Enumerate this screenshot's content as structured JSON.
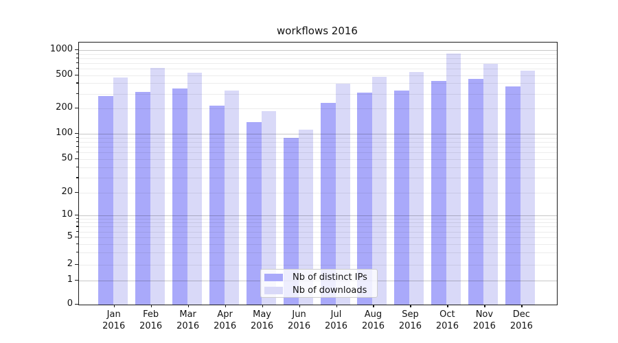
{
  "title": "workflows 2016",
  "chart_data": {
    "type": "bar",
    "title": "workflows 2016",
    "categories": [
      "Jan 2016",
      "Feb 2016",
      "Mar 2016",
      "Apr 2016",
      "May 2016",
      "Jun 2016",
      "Jul 2016",
      "Aug 2016",
      "Sep 2016",
      "Oct 2016",
      "Nov 2016",
      "Dec 2016"
    ],
    "series": [
      {
        "name": "Nb of distinct IPs",
        "color": "#a9a9fa",
        "values": [
          280,
          318,
          346,
          217,
          137,
          90,
          235,
          310,
          330,
          430,
          447,
          368
        ]
      },
      {
        "name": "Nb of downloads",
        "color": "#d9d9f8",
        "values": [
          465,
          610,
          533,
          325,
          188,
          113,
          395,
          480,
          540,
          910,
          685,
          570
        ]
      }
    ],
    "xlabel": "",
    "ylabel": "",
    "yscale": "symlog",
    "y_ticks": [
      0,
      1,
      2,
      5,
      10,
      20,
      50,
      100,
      200,
      500,
      1000
    ],
    "ylim": [
      0,
      1200
    ],
    "grid": "horizontal major+minor, drawn over bars",
    "legend_position": "lower center"
  }
}
